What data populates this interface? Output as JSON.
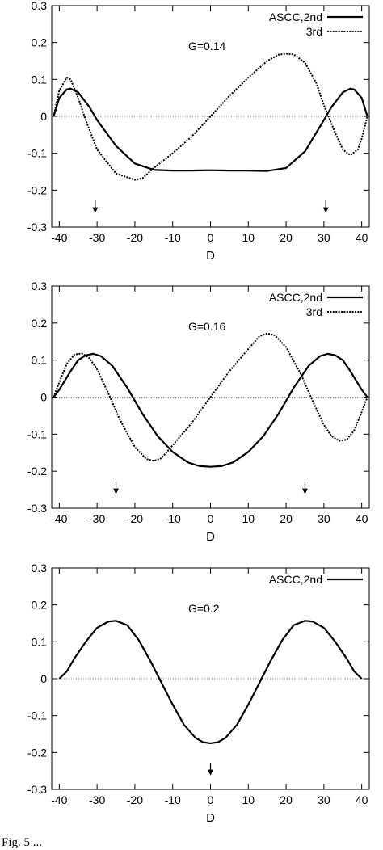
{
  "chart_data": [
    {
      "type": "line",
      "xlabel": "D",
      "ylabel": "",
      "xlim": [
        -42,
        42
      ],
      "ylim": [
        -0.3,
        0.3
      ],
      "xticks": [
        -40,
        -30,
        -20,
        -10,
        0,
        10,
        20,
        30,
        40
      ],
      "yticks": [
        -0.3,
        -0.2,
        -0.1,
        0,
        0.1,
        0.2,
        0.3
      ],
      "annotation": "G=0.14",
      "legend_position": "top-right",
      "zero_line": true,
      "arrows_at_x": [
        -30.5,
        30.5
      ],
      "series": [
        {
          "name": "ASCC,2nd",
          "style": "solid",
          "x": [
            -41.5,
            -40,
            -38,
            -37,
            -35,
            -32,
            -30,
            -25,
            -20,
            -15,
            -10,
            -5,
            0,
            5,
            10,
            15,
            20,
            25,
            30,
            32,
            35,
            37,
            38,
            40,
            41.5
          ],
          "y": [
            0,
            0.05,
            0.073,
            0.075,
            0.065,
            0.025,
            -0.01,
            -0.08,
            -0.128,
            -0.145,
            -0.147,
            -0.147,
            -0.146,
            -0.147,
            -0.147,
            -0.148,
            -0.14,
            -0.095,
            -0.01,
            0.025,
            0.065,
            0.075,
            0.073,
            0.05,
            0
          ]
        },
        {
          "name": "3rd",
          "style": "dotted",
          "x": [
            -41.5,
            -40,
            -38,
            -37,
            -35,
            -33,
            -30,
            -25,
            -20,
            -18,
            -15,
            -10,
            -5,
            0,
            5,
            10,
            15,
            18,
            20,
            22,
            25,
            28,
            30,
            33,
            35,
            37,
            39,
            40,
            41.5
          ],
          "y": [
            0,
            0.07,
            0.105,
            0.1,
            0.05,
            -0.01,
            -0.09,
            -0.155,
            -0.172,
            -0.168,
            -0.14,
            -0.1,
            -0.055,
            0,
            0.055,
            0.105,
            0.15,
            0.167,
            0.17,
            0.168,
            0.145,
            0.09,
            0.03,
            -0.045,
            -0.09,
            -0.105,
            -0.09,
            -0.06,
            0
          ]
        }
      ]
    },
    {
      "type": "line",
      "xlabel": "D",
      "ylabel": "",
      "xlim": [
        -42,
        42
      ],
      "ylim": [
        -0.3,
        0.3
      ],
      "xticks": [
        -40,
        -30,
        -20,
        -10,
        0,
        10,
        20,
        30,
        40
      ],
      "yticks": [
        -0.3,
        -0.2,
        -0.1,
        0,
        0.1,
        0.2,
        0.3
      ],
      "annotation": "G=0.16",
      "legend_position": "top-right",
      "zero_line": true,
      "arrows_at_x": [
        -25,
        25
      ],
      "series": [
        {
          "name": "ASCC,2nd",
          "style": "solid",
          "x": [
            -41.5,
            -40,
            -37,
            -35,
            -33,
            -31,
            -29,
            -26,
            -22,
            -18,
            -14,
            -10,
            -6,
            -3,
            0,
            3,
            6,
            10,
            14,
            18,
            22,
            26,
            29,
            31,
            33,
            35,
            37,
            40,
            41.5
          ],
          "y": [
            0,
            0.02,
            0.07,
            0.1,
            0.113,
            0.117,
            0.111,
            0.085,
            0.025,
            -0.045,
            -0.105,
            -0.148,
            -0.176,
            -0.186,
            -0.188,
            -0.186,
            -0.176,
            -0.148,
            -0.105,
            -0.045,
            0.025,
            0.085,
            0.111,
            0.117,
            0.113,
            0.1,
            0.07,
            0.02,
            0
          ]
        },
        {
          "name": "3rd",
          "style": "dotted",
          "x": [
            -41.5,
            -40,
            -38,
            -36,
            -34,
            -32,
            -30,
            -27,
            -24,
            -20,
            -17,
            -15,
            -13,
            -10,
            -5,
            0,
            5,
            10,
            13,
            15,
            17,
            20,
            24,
            27,
            30,
            32,
            34,
            36,
            38,
            40,
            41.5
          ],
          "y": [
            0,
            0.04,
            0.09,
            0.115,
            0.118,
            0.105,
            0.075,
            0.01,
            -0.06,
            -0.135,
            -0.167,
            -0.172,
            -0.165,
            -0.13,
            -0.07,
            0,
            0.07,
            0.13,
            0.165,
            0.172,
            0.167,
            0.135,
            0.06,
            -0.01,
            -0.075,
            -0.105,
            -0.118,
            -0.115,
            -0.09,
            -0.04,
            0
          ]
        }
      ]
    },
    {
      "type": "line",
      "xlabel": "D",
      "ylabel": "",
      "xlim": [
        -42,
        42
      ],
      "ylim": [
        -0.3,
        0.3
      ],
      "xticks": [
        -40,
        -30,
        -20,
        -10,
        0,
        10,
        20,
        30,
        40
      ],
      "yticks": [
        -0.3,
        -0.2,
        -0.1,
        0,
        0.1,
        0.2,
        0.3
      ],
      "annotation": "G=0.2",
      "legend_position": "top-right",
      "zero_line": true,
      "arrows_at_x": [
        0
      ],
      "series": [
        {
          "name": "ASCC,2nd",
          "style": "solid",
          "x": [
            -40,
            -38,
            -36,
            -33,
            -30,
            -27,
            -25,
            -22,
            -19,
            -16,
            -13,
            -10,
            -7,
            -4,
            -2,
            0,
            2,
            4,
            7,
            10,
            13,
            16,
            19,
            22,
            25,
            27,
            30,
            33,
            36,
            38,
            40
          ],
          "y": [
            0,
            0.02,
            0.055,
            0.1,
            0.138,
            0.155,
            0.157,
            0.145,
            0.105,
            0.05,
            -0.01,
            -0.07,
            -0.125,
            -0.16,
            -0.172,
            -0.175,
            -0.172,
            -0.16,
            -0.125,
            -0.07,
            -0.01,
            0.05,
            0.105,
            0.145,
            0.157,
            0.155,
            0.138,
            0.1,
            0.055,
            0.02,
            0
          ]
        }
      ]
    }
  ],
  "caption": "Fig. 5 ..."
}
